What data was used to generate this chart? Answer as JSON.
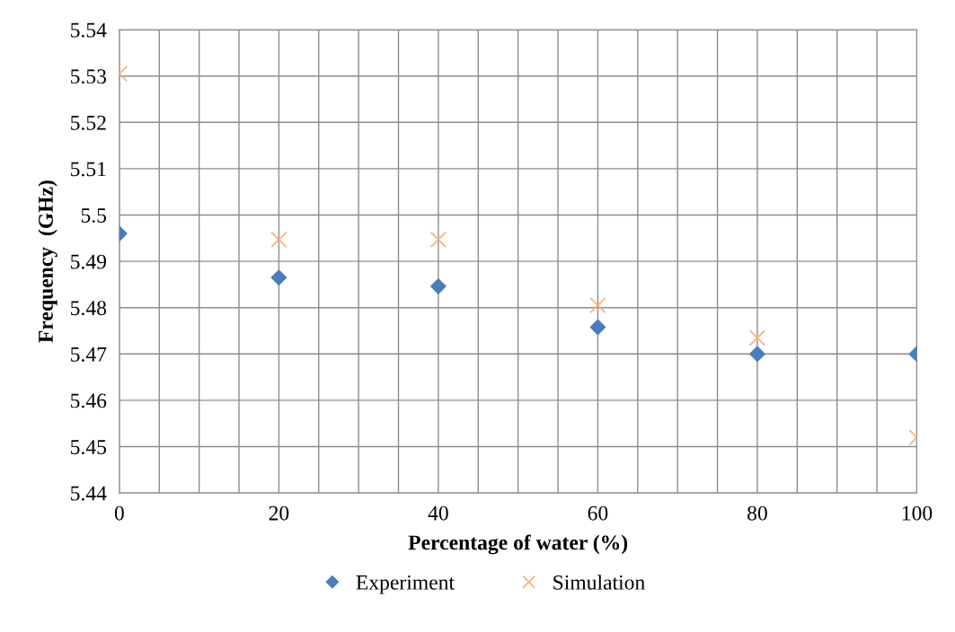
{
  "chart_data": {
    "type": "scatter",
    "xlabel": "Percentage of water (%)",
    "ylabel": "Frequency  (GHz)",
    "x": [
      0,
      20,
      40,
      60,
      80,
      100
    ],
    "series": [
      {
        "name": "Experiment",
        "color": "#4a7ebb",
        "marker": "diamond",
        "values": [
          5.496,
          5.4865,
          5.4846,
          5.4758,
          5.47,
          5.47
        ]
      },
      {
        "name": "Simulation",
        "color": "#f9b27e",
        "marker": "cross",
        "values": [
          5.5305,
          5.4947,
          5.4947,
          5.4805,
          5.4735,
          5.452
        ]
      }
    ],
    "xlim": [
      0,
      100
    ],
    "ylim": [
      5.44,
      5.54
    ],
    "xticks": [
      0,
      {
        "value": 5,
        "label": null
      },
      {
        "value": 10,
        "label": null
      },
      {
        "value": 15,
        "label": null
      },
      20,
      {
        "value": 25,
        "label": null
      },
      {
        "value": 30,
        "label": null
      },
      {
        "value": 35,
        "label": null
      },
      40,
      {
        "value": 45,
        "label": null
      },
      {
        "value": 50,
        "label": null
      },
      {
        "value": 55,
        "label": null
      },
      60,
      {
        "value": 65,
        "label": null
      },
      {
        "value": 70,
        "label": null
      },
      {
        "value": 75,
        "label": null
      },
      80,
      {
        "value": 85,
        "label": null
      },
      {
        "value": 90,
        "label": null
      },
      {
        "value": 95,
        "label": null
      },
      100
    ],
    "yticks": [
      5.44,
      5.45,
      5.46,
      5.47,
      5.48,
      5.49,
      5.5,
      5.51,
      5.52,
      5.53,
      5.54
    ],
    "grid": true,
    "legend": "bottom"
  }
}
